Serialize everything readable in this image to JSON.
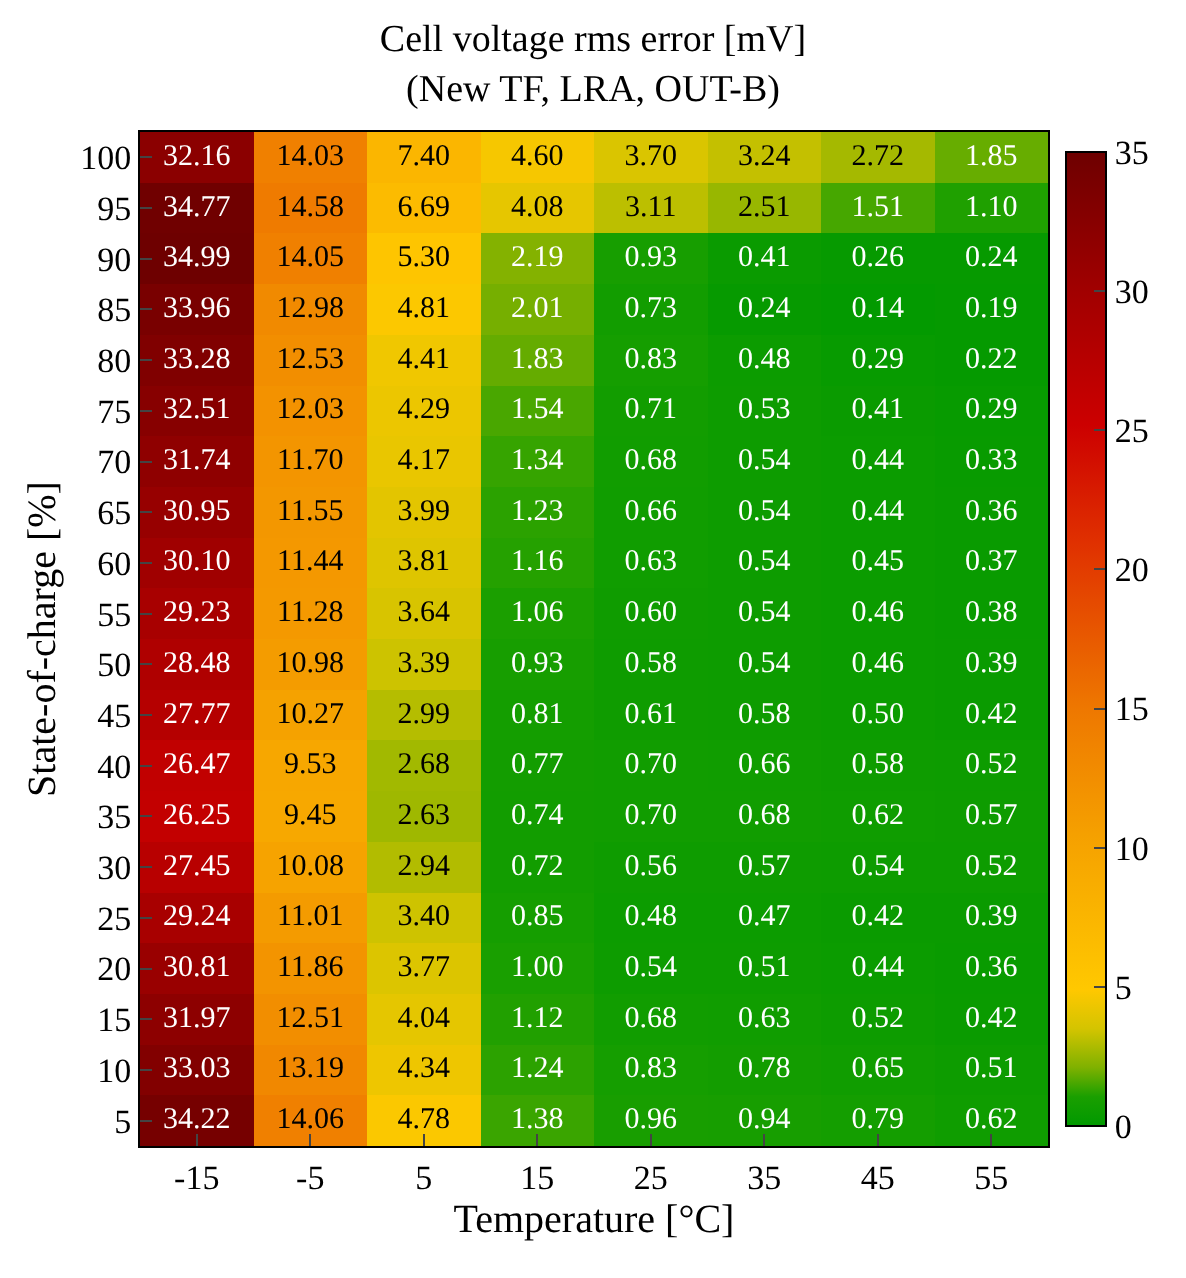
{
  "chart_data": {
    "type": "heatmap",
    "title": "Cell voltage rms error [mV]",
    "subtitle": "(New TF, LRA, OUT-B)",
    "xlabel": "Temperature [°C]",
    "ylabel": "State-of-charge [%]",
    "categories": [
      "-15",
      "-5",
      "5",
      "15",
      "25",
      "35",
      "45",
      "55"
    ],
    "y_categories": [
      "100",
      "95",
      "90",
      "85",
      "80",
      "75",
      "70",
      "65",
      "60",
      "55",
      "50",
      "45",
      "40",
      "35",
      "30",
      "25",
      "20",
      "15",
      "10",
      "5"
    ],
    "cells": [
      [
        32.16,
        14.03,
        7.4,
        4.6,
        3.7,
        3.24,
        2.72,
        1.85
      ],
      [
        34.77,
        14.58,
        6.69,
        4.08,
        3.11,
        2.51,
        1.51,
        1.1
      ],
      [
        34.99,
        14.05,
        5.3,
        2.19,
        0.93,
        0.41,
        0.26,
        0.24
      ],
      [
        33.96,
        12.98,
        4.81,
        2.01,
        0.73,
        0.24,
        0.14,
        0.19
      ],
      [
        33.28,
        12.53,
        4.41,
        1.83,
        0.83,
        0.48,
        0.29,
        0.22
      ],
      [
        32.51,
        12.03,
        4.29,
        1.54,
        0.71,
        0.53,
        0.41,
        0.29
      ],
      [
        31.74,
        11.7,
        4.17,
        1.34,
        0.68,
        0.54,
        0.44,
        0.33
      ],
      [
        30.95,
        11.55,
        3.99,
        1.23,
        0.66,
        0.54,
        0.44,
        0.36
      ],
      [
        30.1,
        11.44,
        3.81,
        1.16,
        0.63,
        0.54,
        0.45,
        0.37
      ],
      [
        29.23,
        11.28,
        3.64,
        1.06,
        0.6,
        0.54,
        0.46,
        0.38
      ],
      [
        28.48,
        10.98,
        3.39,
        0.93,
        0.58,
        0.54,
        0.46,
        0.39
      ],
      [
        27.77,
        10.27,
        2.99,
        0.81,
        0.61,
        0.58,
        0.5,
        0.42
      ],
      [
        26.47,
        9.53,
        2.68,
        0.77,
        0.7,
        0.66,
        0.58,
        0.52
      ],
      [
        26.25,
        9.45,
        2.63,
        0.74,
        0.7,
        0.68,
        0.62,
        0.57
      ],
      [
        27.45,
        10.08,
        2.94,
        0.72,
        0.56,
        0.57,
        0.54,
        0.52
      ],
      [
        29.24,
        11.01,
        3.4,
        0.85,
        0.48,
        0.47,
        0.42,
        0.39
      ],
      [
        30.81,
        11.86,
        3.77,
        1.0,
        0.54,
        0.51,
        0.44,
        0.36
      ],
      [
        31.97,
        12.51,
        4.04,
        1.12,
        0.68,
        0.63,
        0.52,
        0.42
      ],
      [
        33.03,
        13.19,
        4.34,
        1.24,
        0.83,
        0.78,
        0.65,
        0.51
      ],
      [
        34.22,
        14.06,
        4.78,
        1.38,
        0.96,
        0.94,
        0.79,
        0.62
      ]
    ],
    "cell_labels": [
      [
        "32.16",
        "14.03",
        "7.40",
        "4.60",
        "3.70",
        "3.24",
        "2.72",
        "1.85"
      ],
      [
        "34.77",
        "14.58",
        "6.69",
        "4.08",
        "3.11",
        "2.51",
        "1.51",
        "1.10"
      ],
      [
        "34.99",
        "14.05",
        "5.30",
        "2.19",
        "0.93",
        "0.41",
        "0.26",
        "0.24"
      ],
      [
        "33.96",
        "12.98",
        "4.81",
        "2.01",
        "0.73",
        "0.24",
        "0.14",
        "0.19"
      ],
      [
        "33.28",
        "12.53",
        "4.41",
        "1.83",
        "0.83",
        "0.48",
        "0.29",
        "0.22"
      ],
      [
        "32.51",
        "12.03",
        "4.29",
        "1.54",
        "0.71",
        "0.53",
        "0.41",
        "0.29"
      ],
      [
        "31.74",
        "11.70",
        "4.17",
        "1.34",
        "0.68",
        "0.54",
        "0.44",
        "0.33"
      ],
      [
        "30.95",
        "11.55",
        "3.99",
        "1.23",
        "0.66",
        "0.54",
        "0.44",
        "0.36"
      ],
      [
        "30.10",
        "11.44",
        "3.81",
        "1.16",
        "0.63",
        "0.54",
        "0.45",
        "0.37"
      ],
      [
        "29.23",
        "11.28",
        "3.64",
        "1.06",
        "0.60",
        "0.54",
        "0.46",
        "0.38"
      ],
      [
        "28.48",
        "10.98",
        "3.39",
        "0.93",
        "0.58",
        "0.54",
        "0.46",
        "0.39"
      ],
      [
        "27.77",
        "10.27",
        "2.99",
        "0.81",
        "0.61",
        "0.58",
        "0.50",
        "0.42"
      ],
      [
        "26.47",
        "9.53",
        "2.68",
        "0.77",
        "0.70",
        "0.66",
        "0.58",
        "0.52"
      ],
      [
        "26.25",
        "9.45",
        "2.63",
        "0.74",
        "0.70",
        "0.68",
        "0.62",
        "0.57"
      ],
      [
        "27.45",
        "10.08",
        "2.94",
        "0.72",
        "0.56",
        "0.57",
        "0.54",
        "0.52"
      ],
      [
        "29.24",
        "11.01",
        "3.40",
        "0.85",
        "0.48",
        "0.47",
        "0.42",
        "0.39"
      ],
      [
        "30.81",
        "11.86",
        "3.77",
        "1.00",
        "0.54",
        "0.51",
        "0.44",
        "0.36"
      ],
      [
        "31.97",
        "12.51",
        "4.04",
        "1.12",
        "0.68",
        "0.63",
        "0.52",
        "0.42"
      ],
      [
        "33.03",
        "13.19",
        "4.34",
        "1.24",
        "0.83",
        "0.78",
        "0.65",
        "0.51"
      ],
      [
        "34.22",
        "14.06",
        "4.78",
        "1.38",
        "0.96",
        "0.94",
        "0.79",
        "0.62"
      ]
    ],
    "clim": [
      0,
      35
    ],
    "cticks": [
      0,
      5,
      10,
      15,
      20,
      25,
      30,
      35
    ],
    "data_labels": true
  }
}
